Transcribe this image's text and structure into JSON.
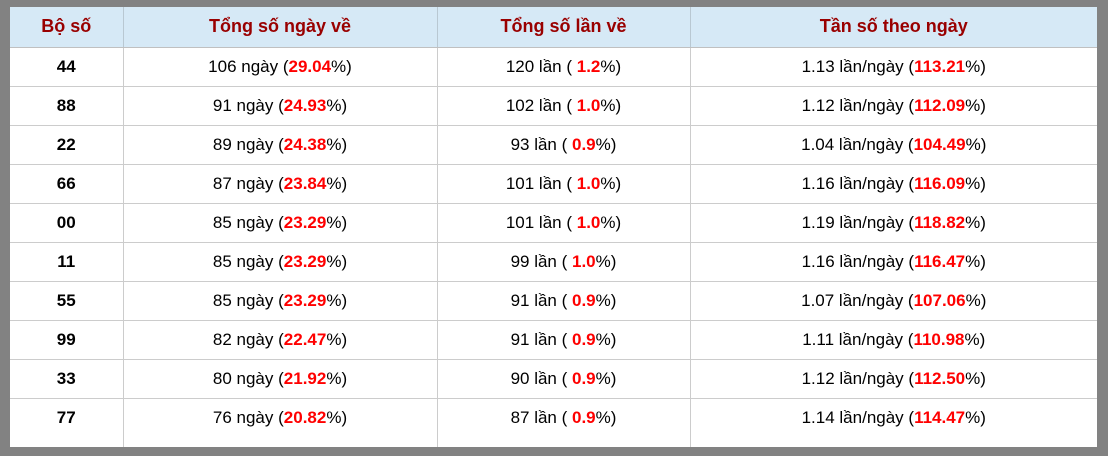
{
  "colors": {
    "frame": "#828282",
    "header_bg": "#d6e9f6",
    "header_text": "#990000",
    "body_text": "#000000",
    "highlight": "#ff0000",
    "grid_line": "#cccccc",
    "panel_bg": "#ffffff"
  },
  "table": {
    "header": {
      "columns": [
        "Bộ số",
        "Tổng số ngày về",
        "Tổng số lần về",
        "Tần số theo ngày"
      ]
    },
    "rows": [
      {
        "pair": "44",
        "days": {
          "prefix": "106 ngày (",
          "highlight": "29.04",
          "suffix": "%)"
        },
        "times": {
          "prefix": "120 lần ( ",
          "highlight": "1.2",
          "suffix": "%)"
        },
        "freq": {
          "prefix": "1.13 lần/ngày (",
          "highlight": "113.21",
          "suffix": "%)"
        }
      },
      {
        "pair": "88",
        "days": {
          "prefix": "91 ngày (",
          "highlight": "24.93",
          "suffix": "%)"
        },
        "times": {
          "prefix": "102 lần ( ",
          "highlight": "1.0",
          "suffix": "%)"
        },
        "freq": {
          "prefix": "1.12 lần/ngày (",
          "highlight": "112.09",
          "suffix": "%)"
        }
      },
      {
        "pair": "22",
        "days": {
          "prefix": "89 ngày (",
          "highlight": "24.38",
          "suffix": "%)"
        },
        "times": {
          "prefix": "93 lần ( ",
          "highlight": "0.9",
          "suffix": "%)"
        },
        "freq": {
          "prefix": "1.04 lần/ngày (",
          "highlight": "104.49",
          "suffix": "%)"
        }
      },
      {
        "pair": "66",
        "days": {
          "prefix": "87 ngày (",
          "highlight": "23.84",
          "suffix": "%)"
        },
        "times": {
          "prefix": "101 lần ( ",
          "highlight": "1.0",
          "suffix": "%)"
        },
        "freq": {
          "prefix": "1.16 lần/ngày (",
          "highlight": "116.09",
          "suffix": "%)"
        }
      },
      {
        "pair": "00",
        "days": {
          "prefix": "85 ngày (",
          "highlight": "23.29",
          "suffix": "%)"
        },
        "times": {
          "prefix": "101 lần ( ",
          "highlight": "1.0",
          "suffix": "%)"
        },
        "freq": {
          "prefix": "1.19 lần/ngày (",
          "highlight": "118.82",
          "suffix": "%)"
        }
      },
      {
        "pair": "11",
        "days": {
          "prefix": "85 ngày (",
          "highlight": "23.29",
          "suffix": "%)"
        },
        "times": {
          "prefix": "99 lần ( ",
          "highlight": "1.0",
          "suffix": "%)"
        },
        "freq": {
          "prefix": "1.16 lần/ngày (",
          "highlight": "116.47",
          "suffix": "%)"
        }
      },
      {
        "pair": "55",
        "days": {
          "prefix": "85 ngày (",
          "highlight": "23.29",
          "suffix": "%)"
        },
        "times": {
          "prefix": "91 lần ( ",
          "highlight": "0.9",
          "suffix": "%)"
        },
        "freq": {
          "prefix": "1.07 lần/ngày (",
          "highlight": "107.06",
          "suffix": "%)"
        }
      },
      {
        "pair": "99",
        "days": {
          "prefix": "82 ngày (",
          "highlight": "22.47",
          "suffix": "%)"
        },
        "times": {
          "prefix": "91 lần ( ",
          "highlight": "0.9",
          "suffix": "%)"
        },
        "freq": {
          "prefix": "1.11 lần/ngày (",
          "highlight": "110.98",
          "suffix": "%)"
        }
      },
      {
        "pair": "33",
        "days": {
          "prefix": "80 ngày (",
          "highlight": "21.92",
          "suffix": "%)"
        },
        "times": {
          "prefix": "90 lần ( ",
          "highlight": "0.9",
          "suffix": "%)"
        },
        "freq": {
          "prefix": "1.12 lần/ngày (",
          "highlight": "112.50",
          "suffix": "%)"
        }
      },
      {
        "pair": "77",
        "days": {
          "prefix": "76 ngày (",
          "highlight": "20.82",
          "suffix": "%)"
        },
        "times": {
          "prefix": "87 lần ( ",
          "highlight": "0.9",
          "suffix": "%)"
        },
        "freq": {
          "prefix": "1.14 lần/ngày (",
          "highlight": "114.47",
          "suffix": "%)"
        }
      }
    ]
  }
}
